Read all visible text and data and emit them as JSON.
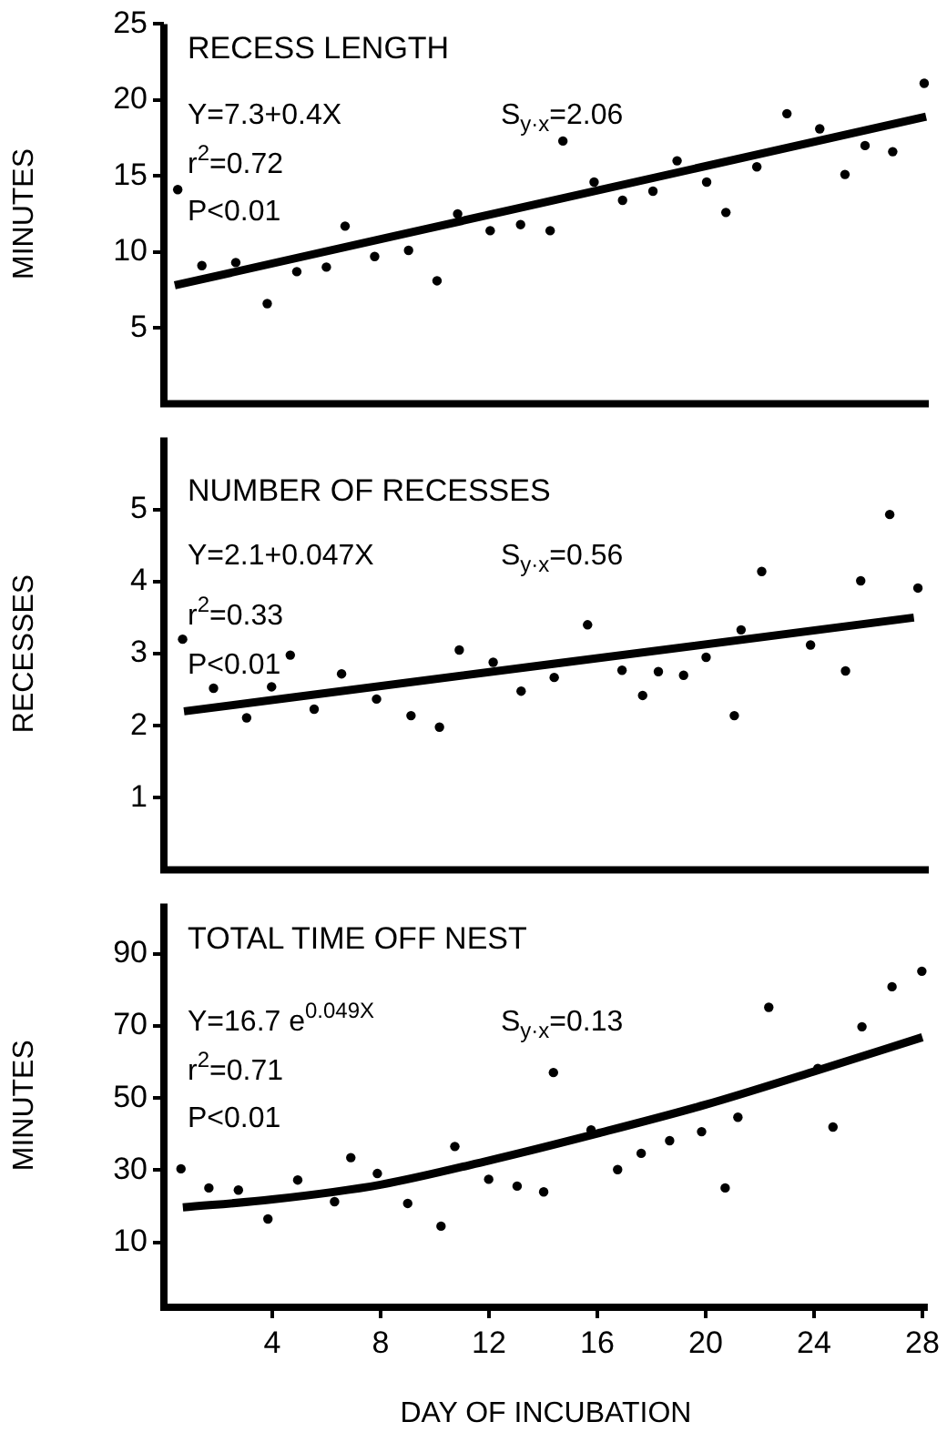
{
  "chart_data": [
    {
      "type": "scatter",
      "title": "RECESS LENGTH",
      "ylabel": "MINUTES",
      "annotations": [
        "Y=7.3+0.4X",
        "S$_{y·x}$=2.06",
        "r$^{2}$=0.72",
        "P<0.01"
      ],
      "xlim": [
        0,
        28.2
      ],
      "xticks": [
        4,
        8,
        12,
        16,
        20,
        24,
        28
      ],
      "ylim": [
        0,
        25
      ],
      "yticks": [
        5,
        10,
        15,
        20,
        25
      ],
      "tick_labels": "y",
      "series": [
        {
          "type": "scatter",
          "color": "#000000",
          "marker": "circle",
          "x": [
            0.51,
            1.4,
            2.65,
            3.81,
            4.9,
            5.99,
            6.68,
            7.77,
            9.02,
            10.07,
            10.83,
            12.03,
            13.15,
            14.24,
            14.71,
            15.86,
            16.91,
            18.03,
            18.92,
            20.01,
            20.72,
            21.86,
            22.97,
            24.18,
            25.11,
            25.85,
            26.87,
            28.03
          ],
          "values": [
            14.1,
            9.1,
            9.3,
            6.6,
            8.7,
            9.0,
            11.7,
            9.7,
            10.1,
            8.1,
            12.5,
            11.4,
            11.8,
            11.4,
            17.3,
            14.6,
            13.4,
            14.0,
            16.0,
            14.6,
            12.6,
            15.6,
            19.1,
            18.1,
            15.1,
            17.0,
            16.6,
            21.1
          ]
        },
        {
          "type": "line",
          "color": "#000000",
          "x": [
            0.4,
            28.1
          ],
          "values": [
            7.8,
            18.9
          ]
        }
      ]
    },
    {
      "type": "scatter",
      "title": "NUMBER OF RECESSES",
      "ylabel": "RECESSES",
      "annotations": [
        "Y=2.1+0.047X",
        "S$_{y·x}$=0.56",
        "r$^{2}$=0.33",
        "P<0.01"
      ],
      "xlim": [
        0,
        28.2
      ],
      "xticks": [
        4,
        8,
        12,
        16,
        20,
        24,
        28
      ],
      "ylim": [
        0,
        6
      ],
      "yticks": [
        1,
        2,
        3,
        4,
        5
      ],
      "tick_labels": "y",
      "series": [
        {
          "type": "scatter",
          "color": "#000000",
          "marker": "circle",
          "x": [
            0.69,
            1.83,
            3.05,
            3.97,
            4.66,
            5.54,
            6.55,
            7.84,
            9.11,
            10.16,
            10.89,
            12.14,
            13.17,
            14.39,
            15.62,
            16.89,
            17.65,
            18.23,
            19.16,
            19.99,
            21.03,
            21.28,
            22.04,
            23.84,
            25.13,
            25.69,
            26.76,
            27.8
          ],
          "values": [
            3.2,
            2.52,
            2.11,
            2.54,
            2.98,
            2.23,
            2.72,
            2.37,
            2.14,
            1.98,
            3.05,
            2.88,
            2.48,
            2.67,
            3.4,
            2.77,
            2.42,
            2.75,
            2.7,
            2.95,
            2.14,
            3.33,
            4.14,
            3.12,
            2.76,
            4.01,
            4.93,
            3.91
          ]
        },
        {
          "type": "line",
          "color": "#000000",
          "x": [
            0.74,
            27.65
          ],
          "values": [
            2.2,
            3.5
          ]
        }
      ]
    },
    {
      "type": "scatter",
      "title": "TOTAL TIME OFF NEST",
      "xlabel": "DAY OF INCUBATION",
      "ylabel": "MINUTES",
      "annotations": [
        "Y=16.7 e$^{0.049X}$",
        "S$_{y·x}$=0.13",
        "r$^{2}$=0.71",
        "P<0.01"
      ],
      "xlim": [
        0,
        28.2
      ],
      "xticks": [
        4,
        8,
        12,
        16,
        20,
        24,
        28
      ],
      "ylim": [
        -8,
        104
      ],
      "yticks": [
        10,
        30,
        50,
        70,
        90
      ],
      "series": [
        {
          "type": "scatter",
          "color": "#000000",
          "marker": "circle",
          "x": [
            0.63,
            1.66,
            2.75,
            3.84,
            4.94,
            6.3,
            6.9,
            7.88,
            9.0,
            10.23,
            10.74,
            11.99,
            13.04,
            14.02,
            14.38,
            15.77,
            16.75,
            17.62,
            18.67,
            19.85,
            20.72,
            21.19,
            22.33,
            24.14,
            24.7,
            25.77,
            26.88,
            27.98
          ],
          "values": [
            30.4,
            25.1,
            24.5,
            16.5,
            27.3,
            21.3,
            33.5,
            29.1,
            20.8,
            14.5,
            36.6,
            27.5,
            25.6,
            24.0,
            57.1,
            41.2,
            30.2,
            34.7,
            38.2,
            40.7,
            25.1,
            44.7,
            75.2,
            58.2,
            42.0,
            69.8,
            80.9,
            85.2
          ]
        },
        {
          "type": "line",
          "color": "#000000",
          "x": [
            0.7,
            4,
            8,
            12,
            16,
            20,
            24,
            28
          ],
          "values": [
            19.7,
            21.9,
            26.0,
            32.7,
            40.2,
            48.2,
            57.4,
            66.9
          ]
        }
      ]
    }
  ]
}
